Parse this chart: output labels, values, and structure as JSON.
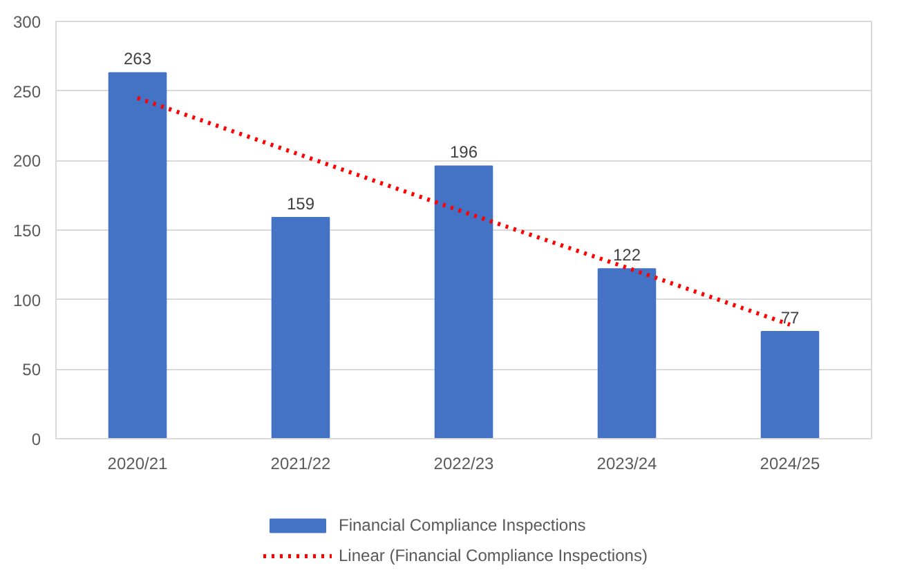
{
  "chart_data": {
    "type": "bar",
    "categories": [
      "2020/21",
      "2021/22",
      "2022/23",
      "2023/24",
      "2024/25"
    ],
    "series": [
      {
        "name": "Financial Compliance Inspections",
        "color": "#4472c4",
        "values": [
          263,
          159,
          196,
          122,
          77
        ],
        "value_labels": [
          "263",
          "159",
          "196",
          "122",
          "77"
        ]
      },
      {
        "name": "Linear (Financial Compliance Inspections)",
        "type": "line",
        "color": "#ff0000",
        "line_style": "dotted",
        "marker": "none",
        "values": [
          245,
          204,
          163,
          123,
          82
        ]
      }
    ],
    "ylim": [
      0,
      300
    ],
    "yticks": [
      0,
      50,
      100,
      150,
      200,
      250,
      300
    ],
    "grid": "y",
    "legend": "bottom"
  }
}
